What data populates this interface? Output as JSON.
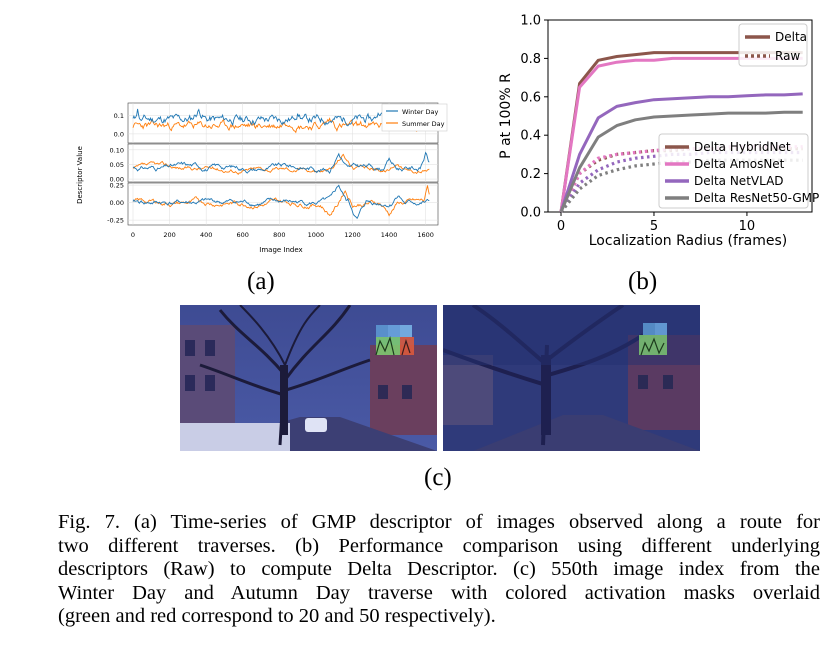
{
  "figure_a": {
    "sublabel": "(a)",
    "ylabel": "Descriptor Value",
    "xlabel": "Image Index",
    "legend": [
      "Winter Day",
      "Summer Day"
    ],
    "series_colors": {
      "Winter Day": "#1f77b4",
      "Summer Day": "#ff7f0e"
    },
    "x_ticks": [
      "0",
      "200",
      "400",
      "600",
      "800",
      "1000",
      "1200",
      "1400",
      "1600"
    ],
    "panels": [
      {
        "y_ticks": [
          "0.1",
          "0.0"
        ],
        "ylim": [
          -0.05,
          0.17
        ]
      },
      {
        "y_ticks": [
          "0.10",
          "0.05",
          "0.00"
        ],
        "ylim": [
          -0.01,
          0.12
        ]
      },
      {
        "y_ticks": [
          "0.25",
          "0.00",
          "-0.25"
        ],
        "ylim": [
          -0.32,
          0.28
        ]
      }
    ]
  },
  "chart_data": {
    "type": "line",
    "ylabel": "P at 100% R",
    "xlabel": "Localization Radius (frames)",
    "xlim": [
      -0.7,
      13.5
    ],
    "ylim": [
      0.0,
      1.0
    ],
    "x_ticks": [
      "0",
      "5",
      "10"
    ],
    "y_ticks": [
      "0.0",
      "0.2",
      "0.4",
      "0.6",
      "0.8",
      "1.0"
    ],
    "grid": false,
    "legend_style": {
      "position": "top-right",
      "entries": [
        "Delta",
        "Raw"
      ]
    },
    "legend_models": {
      "position": "bottom-right",
      "entries": [
        "Delta HybridNet",
        "Delta AmosNet",
        "Delta NetVLAD",
        "Delta ResNet50-GMP"
      ]
    },
    "x": [
      0,
      1,
      2,
      3,
      4,
      5,
      6,
      7,
      8,
      9,
      10,
      11,
      12,
      13
    ],
    "series": [
      {
        "name": "Delta HybridNet",
        "color": "#8c564b",
        "style": "solid",
        "values": [
          0.0,
          0.67,
          0.79,
          0.81,
          0.82,
          0.83,
          0.83,
          0.83,
          0.83,
          0.83,
          0.83,
          0.83,
          0.83,
          0.83
        ]
      },
      {
        "name": "Delta AmosNet",
        "color": "#e377c2",
        "style": "solid",
        "values": [
          0.0,
          0.65,
          0.76,
          0.78,
          0.79,
          0.79,
          0.8,
          0.8,
          0.8,
          0.8,
          0.8,
          0.8,
          0.8,
          0.8
        ]
      },
      {
        "name": "Delta NetVLAD",
        "color": "#9467bd",
        "style": "solid",
        "values": [
          0.0,
          0.3,
          0.49,
          0.55,
          0.57,
          0.585,
          0.59,
          0.595,
          0.6,
          0.6,
          0.605,
          0.61,
          0.61,
          0.615
        ]
      },
      {
        "name": "Delta ResNet50-GMP",
        "color": "#7f7f7f",
        "style": "solid",
        "values": [
          0.0,
          0.23,
          0.39,
          0.45,
          0.48,
          0.495,
          0.5,
          0.505,
          0.51,
          0.515,
          0.515,
          0.515,
          0.52,
          0.52
        ]
      },
      {
        "name": "Raw HybridNet",
        "color": "#8c564b",
        "style": "dotted",
        "values": [
          0.0,
          0.2,
          0.27,
          0.3,
          0.31,
          0.32,
          0.32,
          0.33,
          0.33,
          0.33,
          0.33,
          0.33,
          0.33,
          0.33
        ]
      },
      {
        "name": "Raw AmosNet",
        "color": "#e377c2",
        "style": "dotted",
        "values": [
          0.0,
          0.2,
          0.28,
          0.3,
          0.31,
          0.32,
          0.33,
          0.33,
          0.33,
          0.34,
          0.34,
          0.34,
          0.34,
          0.34
        ]
      },
      {
        "name": "Raw NetVLAD",
        "color": "#9467bd",
        "style": "dotted",
        "values": [
          0.0,
          0.15,
          0.22,
          0.26,
          0.28,
          0.29,
          0.3,
          0.3,
          0.31,
          0.31,
          0.31,
          0.31,
          0.31,
          0.31
        ]
      },
      {
        "name": "Raw ResNet50-GMP",
        "color": "#7f7f7f",
        "style": "dotted",
        "values": [
          0.0,
          0.12,
          0.19,
          0.22,
          0.24,
          0.25,
          0.26,
          0.26,
          0.27,
          0.27,
          0.27,
          0.27,
          0.27,
          0.27
        ]
      }
    ]
  },
  "figure_b": {
    "sublabel": "(b)"
  },
  "figure_c": {
    "sublabel": "(c)"
  },
  "caption": {
    "lines": [
      "Fig. 7.  (a) Time-series of GMP descriptor of images observed along a route for",
      "two different traverses. (b) Performance comparison using different underlying",
      "descriptors (Raw) to compute Delta Descriptor. (c) 550th image index from the",
      "Winter Day and Autumn Day traverse with colored activation masks overlaid",
      "(green and red correspond to 20 and 50 respectively)."
    ]
  }
}
